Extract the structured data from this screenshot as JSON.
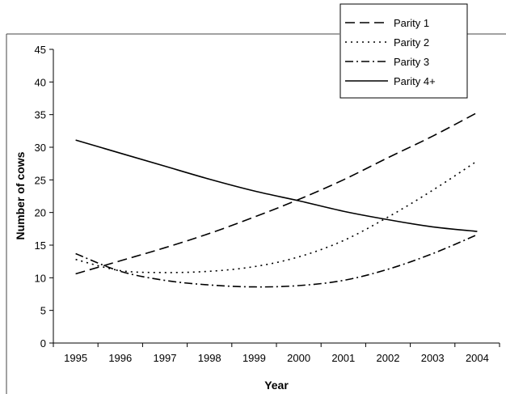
{
  "chart_data": {
    "type": "line",
    "title": "",
    "xlabel": "Year",
    "ylabel": "Number of cows",
    "x": [
      1995,
      1996,
      1997,
      1998,
      1999,
      2000,
      2001,
      2002,
      2003,
      2004
    ],
    "xtick_labels": [
      "1995",
      "1996",
      "1997",
      "1998",
      "1999",
      "2000",
      "2001",
      "2002",
      "2003",
      "2004"
    ],
    "ylim": [
      0,
      45
    ],
    "yticks": [
      0,
      5,
      10,
      15,
      20,
      25,
      30,
      35,
      40,
      45
    ],
    "ytick_labels": [
      "0",
      "5",
      "10",
      "15",
      "20",
      "25",
      "30",
      "35",
      "40",
      "45"
    ],
    "grid": false,
    "legend_position": "top-right",
    "series": [
      {
        "name": "Parity 1",
        "style": "long-dash",
        "values": [
          10.6,
          12.6,
          14.6,
          16.8,
          19.3,
          22.0,
          25.0,
          28.4,
          31.7,
          35.3
        ]
      },
      {
        "name": "Parity 2",
        "style": "dotted",
        "values": [
          12.8,
          11.1,
          10.8,
          11.0,
          11.7,
          13.2,
          15.7,
          19.3,
          23.4,
          27.9
        ]
      },
      {
        "name": "Parity 3",
        "style": "dash-dot",
        "values": [
          13.7,
          11.0,
          9.6,
          8.9,
          8.6,
          8.8,
          9.6,
          11.3,
          13.7,
          16.6
        ]
      },
      {
        "name": "Parity 4+",
        "style": "solid",
        "values": [
          31.1,
          29.1,
          27.1,
          25.1,
          23.3,
          21.8,
          20.2,
          18.9,
          17.8,
          17.1
        ]
      }
    ]
  }
}
